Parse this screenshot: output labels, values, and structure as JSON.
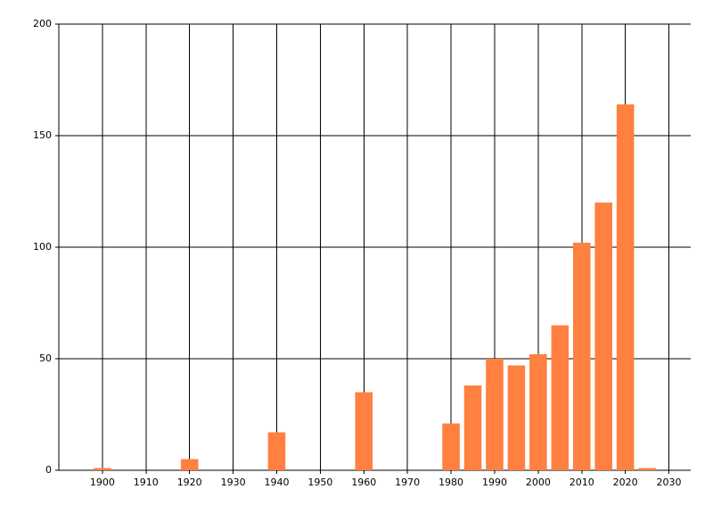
{
  "chart_data": {
    "type": "bar",
    "x": [
      1900,
      1920,
      1940,
      1960,
      1980,
      1985,
      1990,
      1995,
      2000,
      2005,
      2010,
      2015,
      2020,
      2025
    ],
    "values": [
      1,
      5,
      17,
      35,
      21,
      38,
      50,
      47,
      52,
      65,
      102,
      120,
      164,
      1
    ],
    "color": "#ff8040",
    "bar_width": 4,
    "xlim": [
      1890,
      2035
    ],
    "xticks": [
      1900,
      1910,
      1920,
      1930,
      1940,
      1950,
      1960,
      1970,
      1980,
      1990,
      2000,
      2010,
      2020,
      2030
    ],
    "ylim": [
      0,
      200
    ],
    "yticks": [
      0,
      50,
      100,
      150,
      200
    ],
    "grid": true
  }
}
